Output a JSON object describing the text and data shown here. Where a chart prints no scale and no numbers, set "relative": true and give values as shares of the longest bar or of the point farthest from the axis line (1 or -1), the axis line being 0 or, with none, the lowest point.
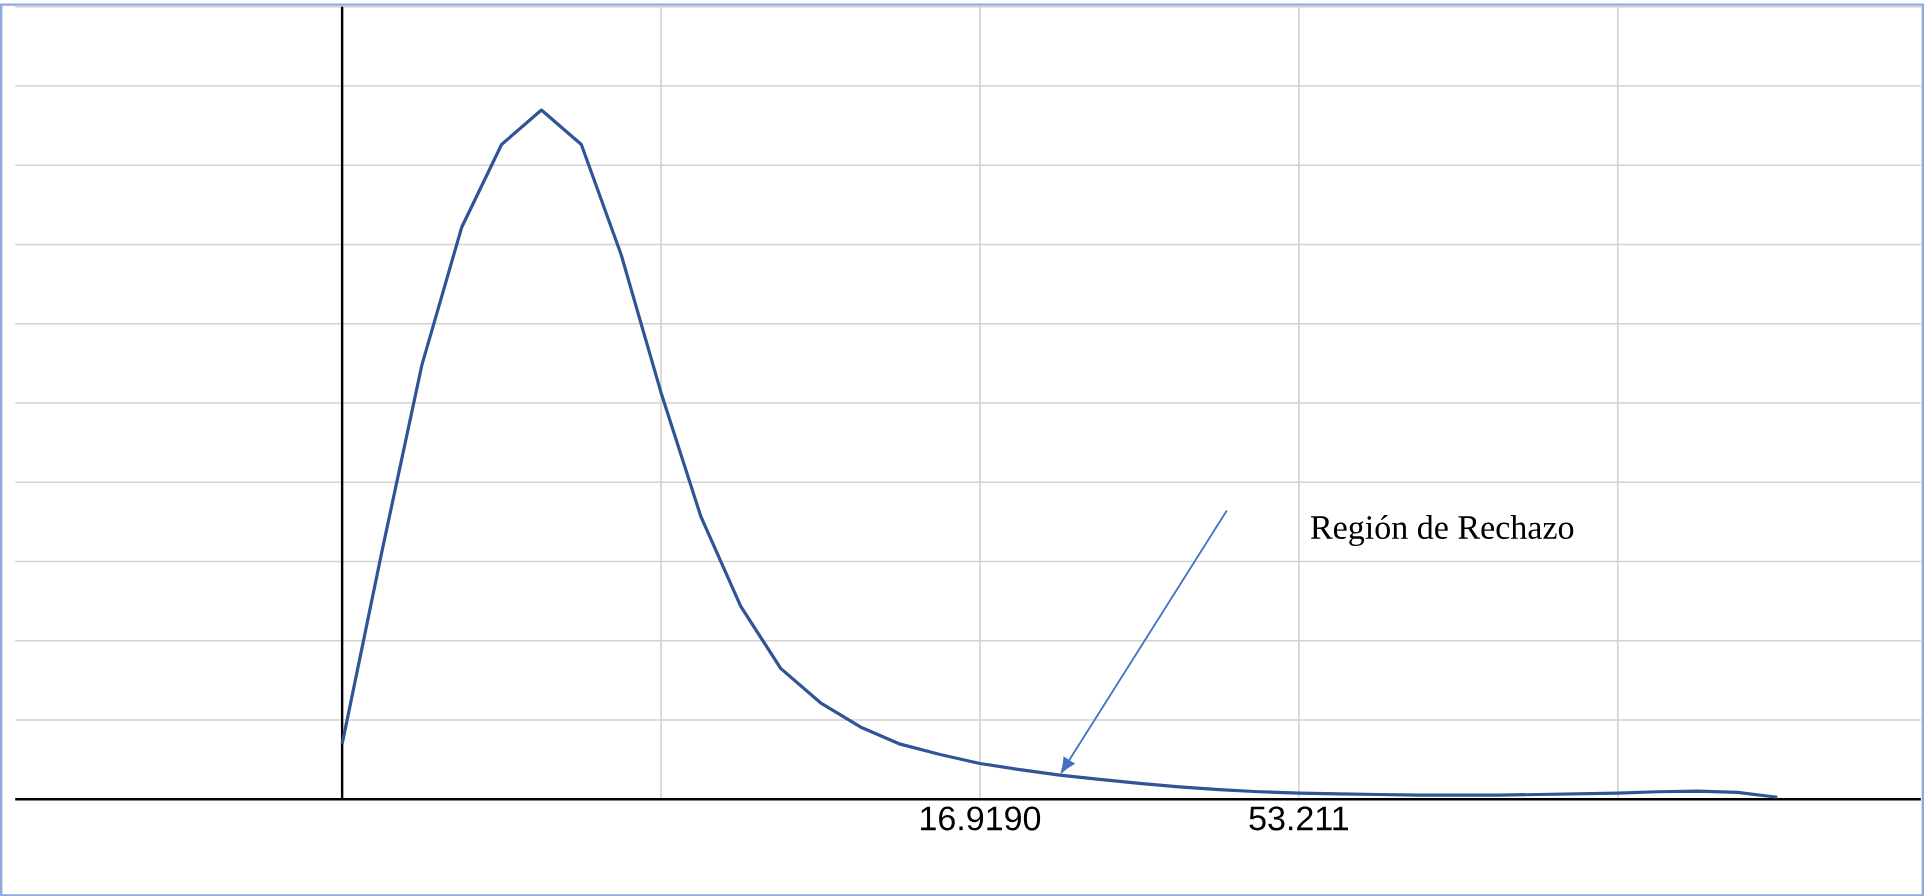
{
  "chart_data": {
    "type": "line",
    "relative": true,
    "color": "#2f5597",
    "grid": true,
    "marker": "none",
    "categories": [
      null,
      null,
      null,
      null,
      null,
      null,
      null,
      null,
      null,
      null,
      null,
      null,
      null,
      null,
      null,
      null,
      "16.9190",
      null,
      null,
      null,
      null,
      null,
      null,
      null,
      "53.211",
      null,
      null,
      null,
      null,
      null,
      null,
      null,
      null,
      null,
      null,
      null,
      null
    ],
    "values": [
      0.08,
      0.36,
      0.63,
      0.83,
      0.95,
      1.0,
      0.95,
      0.79,
      0.59,
      0.41,
      0.28,
      0.19,
      0.14,
      0.105,
      0.08,
      0.065,
      0.052,
      0.043,
      0.035,
      0.029,
      0.023,
      0.018,
      0.014,
      0.011,
      0.009,
      0.008,
      0.007,
      0.006,
      0.006,
      0.006,
      0.007,
      0.008,
      0.009,
      0.011,
      0.012,
      0.01,
      0.003
    ],
    "annotations": [
      "Región de Rechazo"
    ]
  }
}
